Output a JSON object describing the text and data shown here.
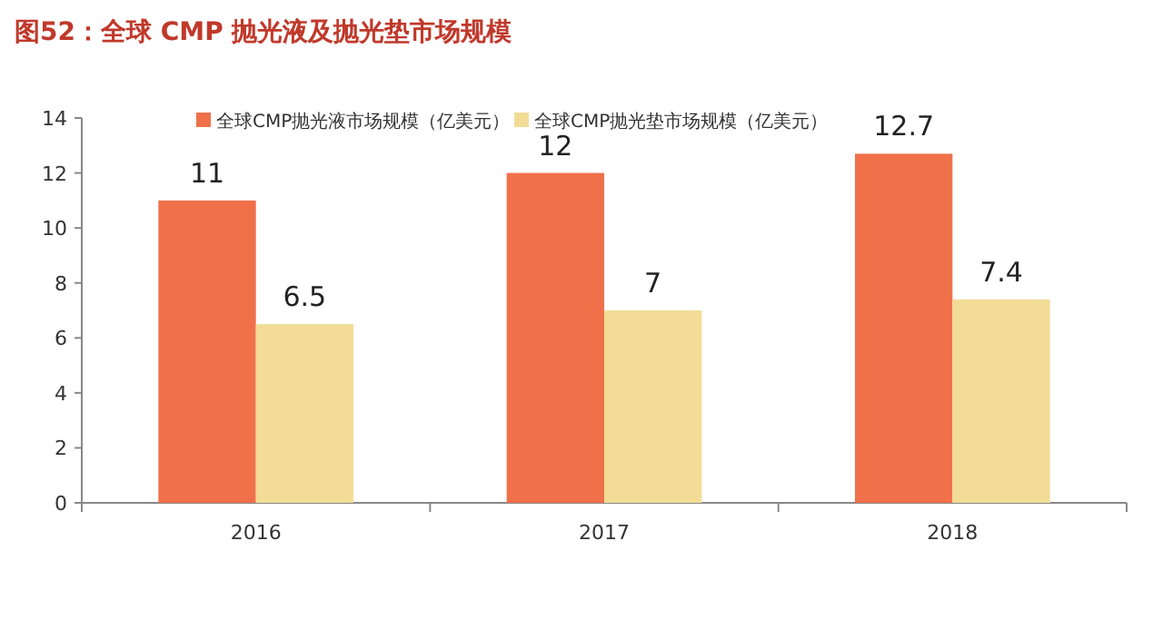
{
  "chart_data": {
    "type": "bar",
    "title": "图52：全球 CMP 抛光液及抛光垫市场规模",
    "categories": [
      "2016",
      "2017",
      "2018"
    ],
    "series": [
      {
        "name": "全球CMP抛光液市场规模（亿美元）",
        "color": "#f0704a",
        "values": [
          11,
          12,
          12.7
        ]
      },
      {
        "name": "全球CMP抛光垫市场规模（亿美元）",
        "color": "#f2dc96",
        "values": [
          6.5,
          7,
          7.4
        ]
      }
    ],
    "ylim": [
      0,
      14
    ],
    "yticks": [
      0,
      2,
      4,
      6,
      8,
      10,
      12,
      14
    ],
    "data_labels": true,
    "legend": "top",
    "grid": false
  }
}
